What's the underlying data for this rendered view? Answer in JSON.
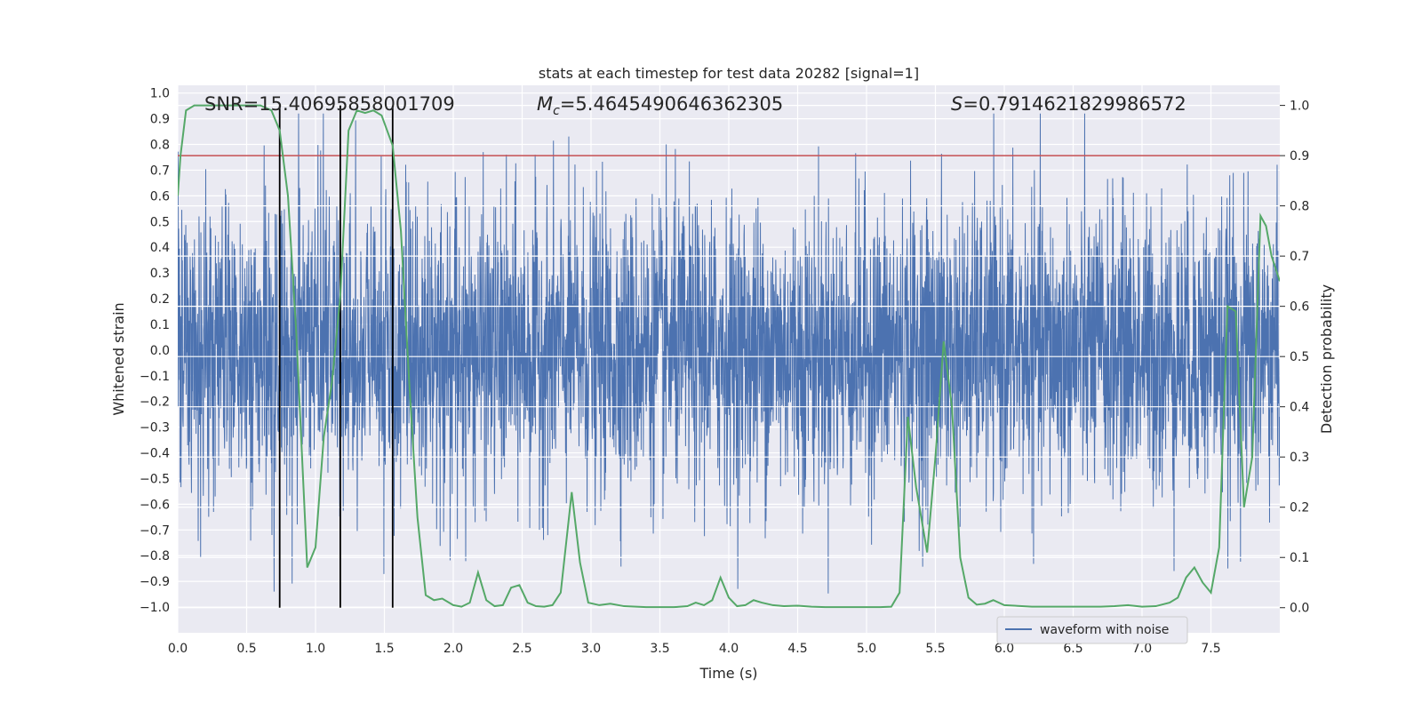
{
  "chart_data": {
    "type": "line",
    "title": "stats at each timestep for test data 20282 [signal=1]",
    "xlabel": "Time (s)",
    "ylabel_left": "Whitened strain",
    "ylabel_right": "Detection probability",
    "xlim": [
      0,
      8
    ],
    "ylim_left": [
      -1.1,
      1.03
    ],
    "ylim_right": [
      -0.05,
      1.04
    ],
    "x_ticks": [
      "0.0",
      "0.5",
      "1.0",
      "1.5",
      "2.0",
      "2.5",
      "3.0",
      "3.5",
      "4.0",
      "4.5",
      "5.0",
      "5.5",
      "6.0",
      "6.5",
      "7.0",
      "7.5"
    ],
    "y_left_ticks": [
      "1.0",
      "0.9",
      "0.8",
      "0.7",
      "0.6",
      "0.5",
      "0.4",
      "0.3",
      "0.2",
      "0.1",
      "0.0",
      "-0.1",
      "-0.2",
      "-0.3",
      "-0.4",
      "-0.5",
      "-0.6",
      "-0.7",
      "-0.8",
      "-0.9",
      "-1.0"
    ],
    "y_right_ticks": [
      "1.0",
      "0.9",
      "0.8",
      "0.7",
      "0.6",
      "0.5",
      "0.4",
      "0.3",
      "0.2",
      "0.1",
      "0.0"
    ],
    "grid": true,
    "legend_position": "bottom-right",
    "annotations": {
      "snr": "SNR=15.40695858001709",
      "mc_symbol": "M",
      "mc_subscript": "c",
      "mc_value": "=5.4645490646362305",
      "s_symbol": "S",
      "s_value": "=0.7914621829986572"
    },
    "threshold": 0.9,
    "vertical_markers": [
      0.74,
      1.18,
      1.56
    ],
    "colors": {
      "background": "#eaeaf2",
      "waveform": "#4c72b0",
      "probability": "#55a868",
      "threshold": "#c44e52",
      "markers": "#000000"
    },
    "series": [
      {
        "name": "waveform with noise",
        "kind": "noisy-waveform",
        "samples": 4096,
        "typical_amplitude": 0.28,
        "max": 0.92,
        "min": -0.98
      },
      {
        "kind": "detection-probability",
        "x": [
          0.0,
          0.02,
          0.06,
          0.12,
          0.2,
          0.3,
          0.4,
          0.5,
          0.6,
          0.68,
          0.74,
          0.8,
          0.86,
          0.94,
          1.0,
          1.06,
          1.12,
          1.18,
          1.24,
          1.3,
          1.36,
          1.42,
          1.48,
          1.56,
          1.62,
          1.68,
          1.74,
          1.8,
          1.86,
          1.92,
          2.0,
          2.06,
          2.12,
          2.18,
          2.24,
          2.3,
          2.36,
          2.42,
          2.48,
          2.54,
          2.6,
          2.66,
          2.72,
          2.78,
          2.86,
          2.92,
          2.98,
          3.06,
          3.14,
          3.24,
          3.4,
          3.6,
          3.7,
          3.76,
          3.82,
          3.88,
          3.94,
          4.0,
          4.06,
          4.12,
          4.18,
          4.24,
          4.32,
          4.4,
          4.5,
          4.6,
          4.7,
          4.8,
          4.9,
          5.0,
          5.1,
          5.18,
          5.24,
          5.3,
          5.36,
          5.44,
          5.5,
          5.56,
          5.62,
          5.68,
          5.74,
          5.8,
          5.86,
          5.92,
          6.0,
          6.2,
          6.5,
          6.7,
          6.8,
          6.9,
          7.0,
          7.1,
          7.2,
          7.26,
          7.32,
          7.38,
          7.44,
          7.5,
          7.56,
          7.62,
          7.68,
          7.74,
          7.8,
          7.86,
          7.9,
          7.94,
          8.0
        ],
        "y": [
          0.82,
          0.9,
          0.99,
          1.0,
          1.0,
          1.0,
          1.0,
          1.0,
          1.0,
          0.99,
          0.95,
          0.82,
          0.55,
          0.08,
          0.12,
          0.34,
          0.45,
          0.62,
          0.95,
          0.99,
          0.985,
          0.99,
          0.98,
          0.92,
          0.75,
          0.45,
          0.18,
          0.025,
          0.015,
          0.018,
          0.005,
          0.002,
          0.01,
          0.07,
          0.015,
          0.003,
          0.005,
          0.04,
          0.045,
          0.01,
          0.003,
          0.002,
          0.005,
          0.03,
          0.23,
          0.09,
          0.01,
          0.005,
          0.008,
          0.003,
          0.001,
          0.001,
          0.003,
          0.01,
          0.005,
          0.015,
          0.06,
          0.02,
          0.003,
          0.005,
          0.015,
          0.01,
          0.005,
          0.003,
          0.004,
          0.002,
          0.001,
          0.001,
          0.001,
          0.001,
          0.001,
          0.002,
          0.03,
          0.38,
          0.24,
          0.11,
          0.3,
          0.53,
          0.4,
          0.1,
          0.02,
          0.006,
          0.008,
          0.015,
          0.005,
          0.002,
          0.002,
          0.002,
          0.003,
          0.005,
          0.002,
          0.003,
          0.01,
          0.02,
          0.06,
          0.08,
          0.05,
          0.03,
          0.12,
          0.6,
          0.59,
          0.2,
          0.3,
          0.78,
          0.76,
          0.7,
          0.65
        ]
      }
    ]
  }
}
